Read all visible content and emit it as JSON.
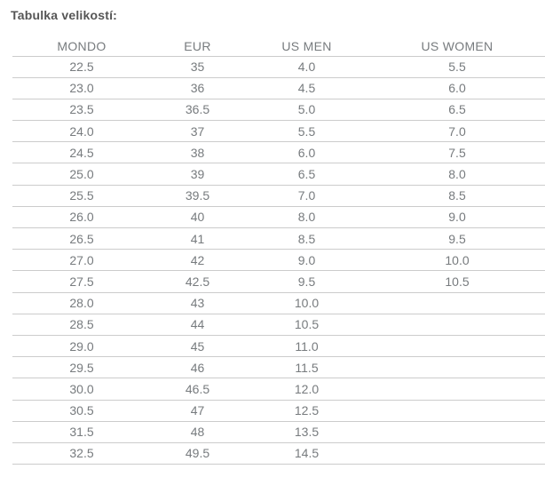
{
  "title": "Tabulka velikostí:",
  "colors": {
    "title": "#555555",
    "text": "#777b7e",
    "line": "#cccccc",
    "background": "#ffffff"
  },
  "table": {
    "columns": [
      "MONDO",
      "EUR",
      "US MEN",
      "US WOMEN"
    ],
    "rows": [
      [
        "22.5",
        "35",
        "4.0",
        "5.5"
      ],
      [
        "23.0",
        "36",
        "4.5",
        "6.0"
      ],
      [
        "23.5",
        "36.5",
        "5.0",
        "6.5"
      ],
      [
        "24.0",
        "37",
        "5.5",
        "7.0"
      ],
      [
        "24.5",
        "38",
        "6.0",
        "7.5"
      ],
      [
        "25.0",
        "39",
        "6.5",
        "8.0"
      ],
      [
        "25.5",
        "39.5",
        "7.0",
        "8.5"
      ],
      [
        "26.0",
        "40",
        "8.0",
        "9.0"
      ],
      [
        "26.5",
        "41",
        "8.5",
        "9.5"
      ],
      [
        "27.0",
        "42",
        "9.0",
        "10.0"
      ],
      [
        "27.5",
        "42.5",
        "9.5",
        "10.5"
      ],
      [
        "28.0",
        "43",
        "10.0",
        ""
      ],
      [
        "28.5",
        "44",
        "10.5",
        ""
      ],
      [
        "29.0",
        "45",
        "11.0",
        ""
      ],
      [
        "29.5",
        "46",
        "11.5",
        ""
      ],
      [
        "30.0",
        "46.5",
        "12.0",
        ""
      ],
      [
        "30.5",
        "47",
        "12.5",
        ""
      ],
      [
        "31.5",
        "48",
        "13.5",
        ""
      ],
      [
        "32.5",
        "49.5",
        "14.5",
        ""
      ]
    ]
  }
}
